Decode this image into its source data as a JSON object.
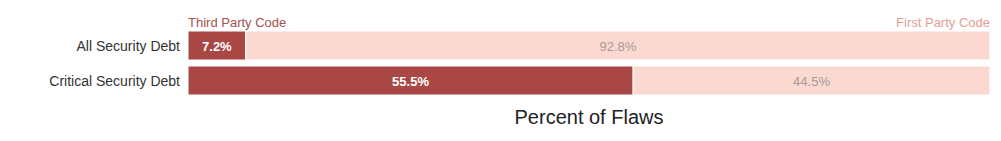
{
  "chart_data": {
    "type": "bar",
    "orientation": "horizontal",
    "stacked": true,
    "x_label": "Percent of Flaws",
    "categories": [
      "All Security Debt",
      "Critical Security Debt"
    ],
    "series": [
      {
        "name": "Third Party Code",
        "color": "#a84743",
        "values": [
          7.2,
          55.5
        ],
        "value_labels": [
          "7.2%",
          "55.5%"
        ]
      },
      {
        "name": "First Party Code",
        "color": "#fbd9d0",
        "values": [
          92.8,
          44.5
        ],
        "value_labels": [
          "92.8%",
          "44.5%"
        ]
      }
    ],
    "xlim": [
      0,
      100
    ],
    "data_labels": true,
    "tick_labels": "y",
    "legend": "top",
    "grid": false
  }
}
